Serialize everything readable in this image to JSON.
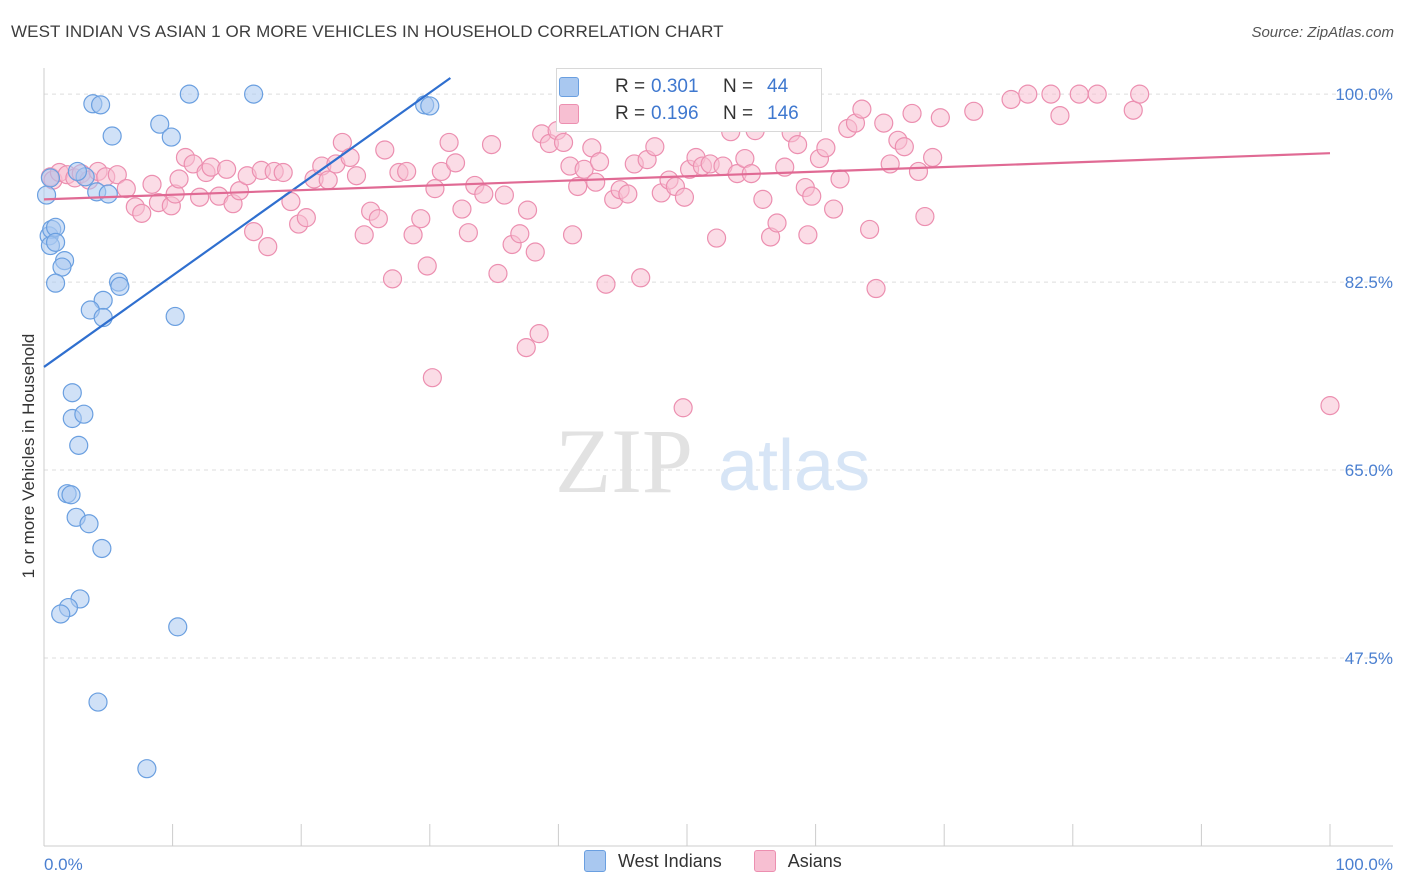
{
  "title": "WEST INDIAN VS ASIAN 1 OR MORE VEHICLES IN HOUSEHOLD CORRELATION CHART",
  "source": "Source: ZipAtlas.com",
  "watermark": {
    "zip": "ZIP",
    "atlas": "atlas"
  },
  "colors": {
    "blue_fill": "#a9c8f0",
    "blue_stroke": "#6a9fe0",
    "blue_line": "#2f6fcf",
    "pink_fill": "#f7bfd2",
    "pink_stroke": "#ec8fb0",
    "pink_line": "#e06a94",
    "tick_text": "#4a7fd0",
    "grid": "#dddddd"
  },
  "legend": {
    "rows": [
      {
        "r_label": "R =",
        "r_value": "0.301",
        "n_label": "N =",
        "n_value": "44"
      },
      {
        "r_label": "R =",
        "r_value": "0.196",
        "n_label": "N =",
        "n_value": "146"
      }
    ],
    "items": [
      "West Indians",
      "Asians"
    ]
  },
  "chart_data": {
    "type": "scatter",
    "title": "WEST INDIAN VS ASIAN 1 OR MORE VEHICLES IN HOUSEHOLD CORRELATION CHART",
    "xlabel": "",
    "ylabel": "1 or more Vehicles in Household",
    "xlim": [
      0,
      100
    ],
    "ylim": [
      30,
      101.5
    ],
    "x_tick_labels": [
      "0.0%",
      "100.0%"
    ],
    "y_ticks": [
      47.5,
      65.0,
      82.5,
      100.0
    ],
    "y_tick_labels": [
      "47.5%",
      "65.0%",
      "82.5%",
      "100.0%"
    ],
    "grid": "horizontal dashed",
    "legend_position": "top-center",
    "series": [
      {
        "name": "West Indians",
        "R": 0.301,
        "N": 44,
        "trend": {
          "x": [
            0,
            31.6
          ],
          "y": [
            74.6,
            101.5
          ]
        },
        "points": [
          [
            0.2,
            90.6
          ],
          [
            0.5,
            92.2
          ],
          [
            0.4,
            86.8
          ],
          [
            0.6,
            87.4
          ],
          [
            0.9,
            87.6
          ],
          [
            0.5,
            85.9
          ],
          [
            0.9,
            86.2
          ],
          [
            1.6,
            84.5
          ],
          [
            1.4,
            83.9
          ],
          [
            0.9,
            82.4
          ],
          [
            3.2,
            92.3
          ],
          [
            2.6,
            92.8
          ],
          [
            4.1,
            90.9
          ],
          [
            5.0,
            90.7
          ],
          [
            3.8,
            99.1
          ],
          [
            4.4,
            99.0
          ],
          [
            5.3,
            96.1
          ],
          [
            9.0,
            97.2
          ],
          [
            9.9,
            96.0
          ],
          [
            11.3,
            100.0
          ],
          [
            16.3,
            100.0
          ],
          [
            29.6,
            99.0
          ],
          [
            30.0,
            98.9
          ],
          [
            5.8,
            82.5
          ],
          [
            5.9,
            82.1
          ],
          [
            4.6,
            80.8
          ],
          [
            3.6,
            79.9
          ],
          [
            4.6,
            79.2
          ],
          [
            10.2,
            79.3
          ],
          [
            2.2,
            72.2
          ],
          [
            2.2,
            69.8
          ],
          [
            3.1,
            70.2
          ],
          [
            2.7,
            67.3
          ],
          [
            1.8,
            62.8
          ],
          [
            2.1,
            62.7
          ],
          [
            2.5,
            60.6
          ],
          [
            3.5,
            60.0
          ],
          [
            4.5,
            57.7
          ],
          [
            2.8,
            53.0
          ],
          [
            1.9,
            52.2
          ],
          [
            1.3,
            51.6
          ],
          [
            10.4,
            50.4
          ],
          [
            4.2,
            43.4
          ],
          [
            8.0,
            37.2
          ]
        ]
      },
      {
        "name": "Asians",
        "R": 0.196,
        "N": 146,
        "trend": {
          "x": [
            0,
            100
          ],
          "y": [
            90.2,
            94.5
          ]
        },
        "points": [
          [
            0.5,
            92.3
          ],
          [
            0.7,
            92.0
          ],
          [
            1.2,
            92.7
          ],
          [
            1.8,
            92.5
          ],
          [
            2.4,
            92.2
          ],
          [
            2.9,
            92.6
          ],
          [
            3.5,
            92.0
          ],
          [
            4.2,
            92.8
          ],
          [
            4.8,
            92.3
          ],
          [
            5.7,
            92.5
          ],
          [
            6.4,
            91.2
          ],
          [
            7.1,
            89.5
          ],
          [
            7.6,
            88.9
          ],
          [
            8.4,
            91.6
          ],
          [
            8.9,
            89.9
          ],
          [
            9.9,
            89.6
          ],
          [
            10.2,
            90.7
          ],
          [
            10.5,
            92.1
          ],
          [
            11.0,
            94.1
          ],
          [
            11.6,
            93.5
          ],
          [
            12.1,
            90.4
          ],
          [
            12.6,
            92.7
          ],
          [
            13.0,
            93.2
          ],
          [
            13.6,
            90.5
          ],
          [
            14.2,
            93.0
          ],
          [
            14.7,
            89.8
          ],
          [
            15.2,
            91.0
          ],
          [
            15.8,
            92.4
          ],
          [
            16.3,
            87.2
          ],
          [
            16.9,
            92.9
          ],
          [
            17.4,
            85.8
          ],
          [
            17.9,
            92.8
          ],
          [
            18.6,
            92.7
          ],
          [
            19.2,
            90.0
          ],
          [
            19.8,
            87.9
          ],
          [
            20.4,
            88.5
          ],
          [
            21.0,
            92.1
          ],
          [
            21.6,
            93.3
          ],
          [
            22.1,
            92.0
          ],
          [
            22.7,
            93.5
          ],
          [
            23.2,
            95.5
          ],
          [
            23.8,
            94.1
          ],
          [
            24.3,
            92.4
          ],
          [
            24.9,
            86.9
          ],
          [
            25.4,
            89.1
          ],
          [
            26.0,
            88.4
          ],
          [
            26.5,
            94.8
          ],
          [
            27.1,
            82.8
          ],
          [
            27.6,
            92.7
          ],
          [
            28.2,
            92.8
          ],
          [
            28.7,
            86.9
          ],
          [
            29.3,
            88.4
          ],
          [
            29.8,
            84.0
          ],
          [
            30.4,
            91.2
          ],
          [
            30.9,
            92.8
          ],
          [
            31.5,
            95.5
          ],
          [
            32.0,
            93.6
          ],
          [
            32.5,
            89.3
          ],
          [
            33.0,
            87.1
          ],
          [
            33.5,
            91.5
          ],
          [
            34.2,
            90.7
          ],
          [
            34.8,
            95.3
          ],
          [
            35.3,
            83.3
          ],
          [
            35.8,
            90.6
          ],
          [
            36.4,
            86.0
          ],
          [
            37.0,
            87.0
          ],
          [
            37.6,
            89.2
          ],
          [
            38.2,
            85.3
          ],
          [
            38.7,
            96.3
          ],
          [
            39.3,
            95.4
          ],
          [
            39.9,
            96.6
          ],
          [
            40.4,
            95.5
          ],
          [
            40.9,
            93.3
          ],
          [
            41.5,
            91.4
          ],
          [
            42.0,
            93.0
          ],
          [
            42.6,
            95.0
          ],
          [
            43.2,
            93.7
          ],
          [
            43.7,
            82.3
          ],
          [
            44.3,
            90.2
          ],
          [
            44.8,
            91.1
          ],
          [
            45.4,
            90.7
          ],
          [
            45.9,
            93.5
          ],
          [
            46.4,
            82.9
          ],
          [
            46.9,
            93.9
          ],
          [
            47.5,
            95.1
          ],
          [
            48.0,
            90.8
          ],
          [
            48.6,
            92.0
          ],
          [
            49.1,
            91.4
          ],
          [
            49.7,
            70.8
          ],
          [
            50.2,
            93.0
          ],
          [
            50.7,
            94.1
          ],
          [
            51.2,
            93.3
          ],
          [
            51.8,
            93.5
          ],
          [
            52.3,
            86.6
          ],
          [
            52.8,
            93.3
          ],
          [
            53.4,
            96.5
          ],
          [
            53.9,
            92.6
          ],
          [
            54.5,
            94.0
          ],
          [
            55.0,
            92.6
          ],
          [
            55.3,
            96.6
          ],
          [
            55.9,
            90.2
          ],
          [
            56.5,
            86.7
          ],
          [
            57.0,
            88.0
          ],
          [
            57.6,
            93.2
          ],
          [
            58.1,
            96.4
          ],
          [
            58.6,
            95.3
          ],
          [
            59.2,
            91.3
          ],
          [
            59.7,
            90.5
          ],
          [
            60.3,
            94.0
          ],
          [
            60.8,
            95.0
          ],
          [
            61.4,
            89.3
          ],
          [
            61.9,
            92.1
          ],
          [
            62.5,
            96.8
          ],
          [
            63.1,
            97.3
          ],
          [
            63.6,
            98.6
          ],
          [
            64.2,
            87.4
          ],
          [
            64.7,
            81.9
          ],
          [
            65.3,
            97.3
          ],
          [
            65.8,
            93.5
          ],
          [
            66.4,
            95.7
          ],
          [
            66.9,
            95.1
          ],
          [
            67.5,
            98.2
          ],
          [
            68.0,
            92.8
          ],
          [
            68.5,
            88.6
          ],
          [
            69.1,
            94.1
          ],
          [
            69.7,
            97.8
          ],
          [
            72.3,
            98.4
          ],
          [
            75.2,
            99.5
          ],
          [
            76.5,
            100.0
          ],
          [
            78.3,
            100.0
          ],
          [
            79.0,
            98.0
          ],
          [
            80.5,
            100.0
          ],
          [
            81.9,
            100.0
          ],
          [
            84.7,
            98.5
          ],
          [
            85.2,
            100.0
          ],
          [
            38.5,
            77.7
          ],
          [
            30.2,
            73.6
          ],
          [
            37.5,
            76.4
          ],
          [
            41.1,
            86.9
          ],
          [
            58.6,
            99.6
          ],
          [
            100.0,
            71.0
          ],
          [
            59.4,
            86.9
          ],
          [
            49.8,
            90.4
          ],
          [
            42.9,
            91.8
          ]
        ]
      }
    ]
  }
}
